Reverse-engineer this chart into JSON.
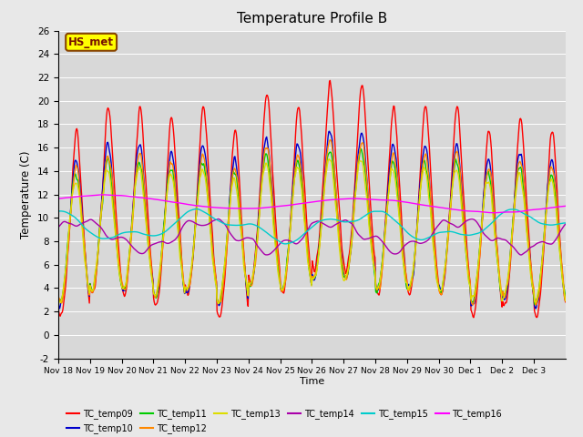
{
  "title": "Temperature Profile B",
  "xlabel": "Time",
  "ylabel": "Temperature (C)",
  "ylim": [
    -2,
    26
  ],
  "fig_bg_color": "#e8e8e8",
  "plot_bg_color": "#d8d8d8",
  "series_colors": {
    "TC_temp09": "#ff0000",
    "TC_temp10": "#0000cc",
    "TC_temp11": "#00cc00",
    "TC_temp12": "#ff8800",
    "TC_temp13": "#dddd00",
    "TC_temp14": "#aa00aa",
    "TC_temp15": "#00cccc",
    "TC_temp16": "#ff00ff"
  },
  "annotation_text": "HS_met",
  "annotation_box_color": "#ffff00",
  "annotation_border_color": "#884400",
  "tick_labels": [
    "Nov 18",
    "Nov 19",
    "Nov 20",
    "Nov 21",
    "Nov 22",
    "Nov 23",
    "Nov 24",
    "Nov 25",
    "Nov 26",
    "Nov 27",
    "Nov 28",
    "Nov 29",
    "Nov 30",
    "Dec 1",
    "Dec 2",
    "Dec 3"
  ],
  "yticks": [
    -2,
    0,
    2,
    4,
    6,
    8,
    10,
    12,
    14,
    16,
    18,
    20,
    22,
    24,
    26
  ],
  "num_days": 16,
  "points_per_day": 48
}
